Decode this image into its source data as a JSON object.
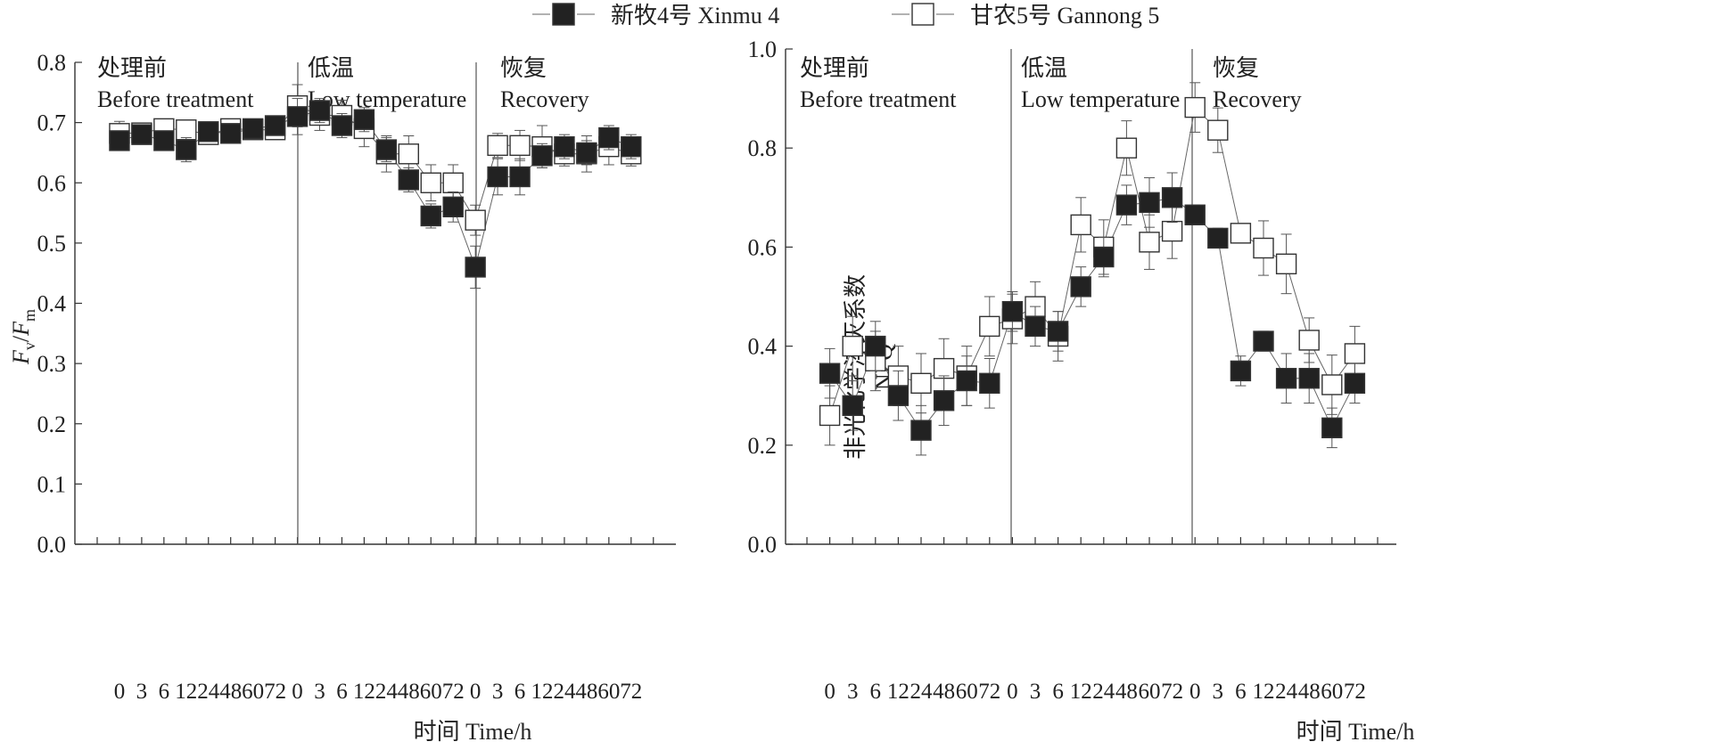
{
  "legend": [
    {
      "series": "xinmu",
      "label": "新牧4号 Xinmu 4",
      "fill": "#222222"
    },
    {
      "series": "gannong",
      "label": "甘农5号 Gannong 5",
      "fill": "#ffffff"
    }
  ],
  "phases": [
    {
      "cn": "处理前",
      "en": "Before treatment"
    },
    {
      "cn": "低温",
      "en": "Low temperature"
    },
    {
      "cn": "恢复",
      "en": "Recovery"
    }
  ],
  "x_tick_labels": [
    "0",
    "3",
    "6",
    "12",
    "24",
    "48",
    "60",
    "72",
    "0",
    "3",
    "6",
    "12",
    "24",
    "48",
    "60",
    "72",
    "0",
    "3",
    "6",
    "12",
    "24",
    "48",
    "60",
    "72"
  ],
  "colors": {
    "filled": "#222222",
    "open": "#ffffff",
    "stroke": "#333333"
  },
  "chart_data": [
    {
      "type": "scatter",
      "id": "fvfm",
      "title": "",
      "xlabel": "时间 Time/h",
      "ylabel": "Fv/Fm",
      "ylabel_parts": {
        "F1": "F",
        "sub1": "v",
        "slash": "/",
        "F2": "F",
        "sub2": "m"
      },
      "ylim": [
        0,
        0.8
      ],
      "yticks": [
        "0.0",
        "0.1",
        "0.2",
        "0.3",
        "0.4",
        "0.5",
        "0.6",
        "0.7",
        "0.8"
      ],
      "categories": [
        "0",
        "3",
        "6",
        "12",
        "24",
        "48",
        "60",
        "72",
        "0",
        "3",
        "6",
        "12",
        "24",
        "48",
        "60",
        "72",
        "0",
        "3",
        "6",
        "12",
        "24",
        "48",
        "60",
        "72"
      ],
      "series": [
        {
          "name": "新牧4号 Xinmu 4",
          "key": "xinmu",
          "filled": true,
          "values": [
            0.67,
            0.68,
            0.67,
            0.655,
            0.685,
            0.682,
            0.69,
            0.695,
            0.71,
            0.72,
            0.695,
            0.705,
            0.655,
            0.605,
            0.545,
            0.56,
            0.46,
            0.61,
            0.61,
            0.645,
            0.66,
            0.65,
            0.675,
            0.66
          ],
          "errors": [
            0.01,
            0.01,
            0.015,
            0.02,
            0.015,
            0.01,
            0.01,
            0.01,
            0.03,
            0.02,
            0.02,
            0.02,
            0.02,
            0.02,
            0.02,
            0.025,
            0.035,
            0.03,
            0.03,
            0.02,
            0.02,
            0.02,
            0.02,
            0.02
          ]
        },
        {
          "name": "甘农5号 Gannong 5",
          "key": "gannong",
          "filled": false,
          "values": [
            0.682,
            0.683,
            0.69,
            0.688,
            0.68,
            0.69,
            0.688,
            0.688,
            0.728,
            0.712,
            0.712,
            0.69,
            0.648,
            0.648,
            0.6,
            0.6,
            0.538,
            0.662,
            0.662,
            0.66,
            0.648,
            0.648,
            0.66,
            0.648
          ],
          "errors": [
            0.02,
            0.01,
            0.01,
            0.01,
            0.01,
            0.01,
            0.01,
            0.01,
            0.035,
            0.025,
            0.025,
            0.03,
            0.03,
            0.03,
            0.03,
            0.03,
            0.025,
            0.02,
            0.025,
            0.035,
            0.02,
            0.03,
            0.03,
            0.02
          ]
        }
      ]
    },
    {
      "type": "scatter",
      "id": "npq",
      "title": "",
      "xlabel": "时间 Time/h",
      "ylabel": "非光化学淬灭系数 NPQ",
      "ylabel_parts": {
        "cn": "非光化学淬灭系数",
        "en": "NPQ"
      },
      "ylim": [
        0,
        1.0
      ],
      "yticks": [
        "0.0",
        "0.2",
        "0.4",
        "0.6",
        "0.8",
        "1.0"
      ],
      "categories": [
        "0",
        "3",
        "6",
        "12",
        "24",
        "48",
        "60",
        "72",
        "0",
        "3",
        "6",
        "12",
        "24",
        "48",
        "60",
        "72",
        "0",
        "3",
        "6",
        "12",
        "24",
        "48",
        "60",
        "72"
      ],
      "series": [
        {
          "name": "新牧4号 Xinmu 4",
          "key": "xinmu",
          "filled": true,
          "values": [
            0.345,
            0.28,
            0.4,
            0.3,
            0.23,
            0.29,
            0.33,
            0.325,
            0.47,
            0.44,
            0.43,
            0.52,
            0.58,
            0.685,
            0.69,
            0.7,
            0.665,
            0.618,
            0.35,
            0.41,
            0.335,
            0.335,
            0.235,
            0.325
          ],
          "errors": [
            0.05,
            0.05,
            0.05,
            0.05,
            0.05,
            0.05,
            0.05,
            0.05,
            0.04,
            0.04,
            0.04,
            0.04,
            0.04,
            0.04,
            0.05,
            0.05,
            0.02,
            0.02,
            0.03,
            0.02,
            0.05,
            0.05,
            0.04,
            0.04
          ]
        },
        {
          "name": "甘农5号 Gannong 5",
          "key": "gannong",
          "filled": false,
          "values": [
            0.26,
            0.4,
            0.37,
            0.34,
            0.325,
            0.355,
            0.34,
            0.44,
            0.455,
            0.48,
            0.42,
            0.645,
            0.6,
            0.8,
            0.61,
            0.632,
            0.882,
            0.836,
            0.628,
            0.598,
            0.566,
            0.412,
            0.322,
            0.385
          ],
          "errors": [
            0.06,
            0.06,
            0.06,
            0.06,
            0.06,
            0.06,
            0.06,
            0.06,
            0.05,
            0.05,
            0.05,
            0.055,
            0.055,
            0.055,
            0.055,
            0.055,
            0.05,
            0.045,
            0.01,
            0.055,
            0.06,
            0.045,
            0.06,
            0.055
          ]
        }
      ]
    }
  ]
}
